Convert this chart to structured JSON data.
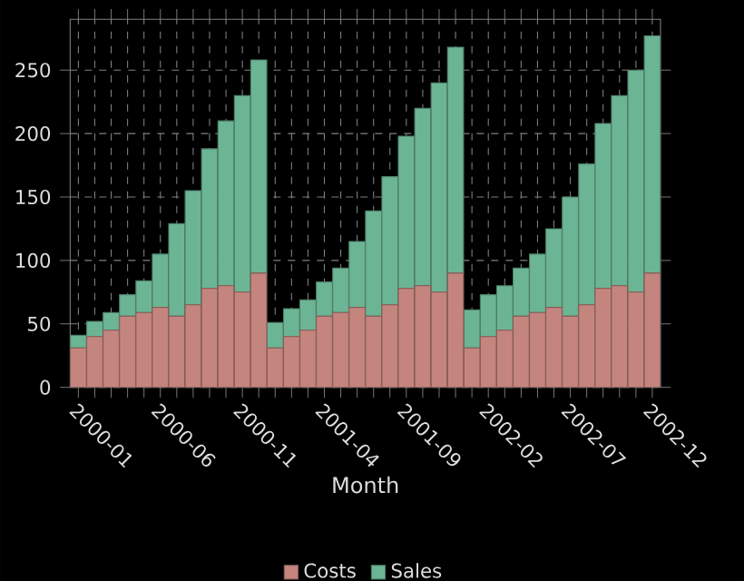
{
  "chart_data": {
    "type": "bar",
    "stacked": true,
    "xlabel": "Month",
    "categories": [
      "2000-01",
      null,
      null,
      null,
      null,
      "2000-06",
      null,
      null,
      null,
      null,
      "2000-11",
      null,
      null,
      null,
      null,
      "2001-04",
      null,
      null,
      null,
      null,
      "2001-09",
      null,
      null,
      null,
      null,
      "2002-02",
      null,
      null,
      null,
      null,
      "2002-07",
      null,
      null,
      null,
      null,
      "2002-12"
    ],
    "series": [
      {
        "name": "Costs",
        "color": "#c4857f",
        "values": [
          31,
          40,
          45,
          56,
          59,
          63,
          56,
          65,
          78,
          80,
          75,
          90,
          31,
          40,
          45,
          56,
          59,
          63,
          56,
          65,
          78,
          80,
          75,
          90,
          31,
          40,
          45,
          56,
          59,
          63,
          56,
          65,
          78,
          80,
          75,
          90
        ]
      },
      {
        "name": "Sales",
        "color": "#6cb594",
        "values": [
          10,
          12,
          14,
          17,
          25,
          42,
          73,
          90,
          110,
          130,
          155,
          168,
          20,
          22,
          24,
          27,
          35,
          52,
          83,
          101,
          120,
          140,
          165,
          178,
          30,
          33,
          35,
          38,
          46,
          62,
          94,
          111,
          130,
          150,
          175,
          187
        ]
      }
    ],
    "ylim": [
      0,
      290
    ],
    "yticks": [
      0,
      50,
      100,
      150,
      200,
      250
    ],
    "grid": true,
    "legend": "bottom"
  }
}
